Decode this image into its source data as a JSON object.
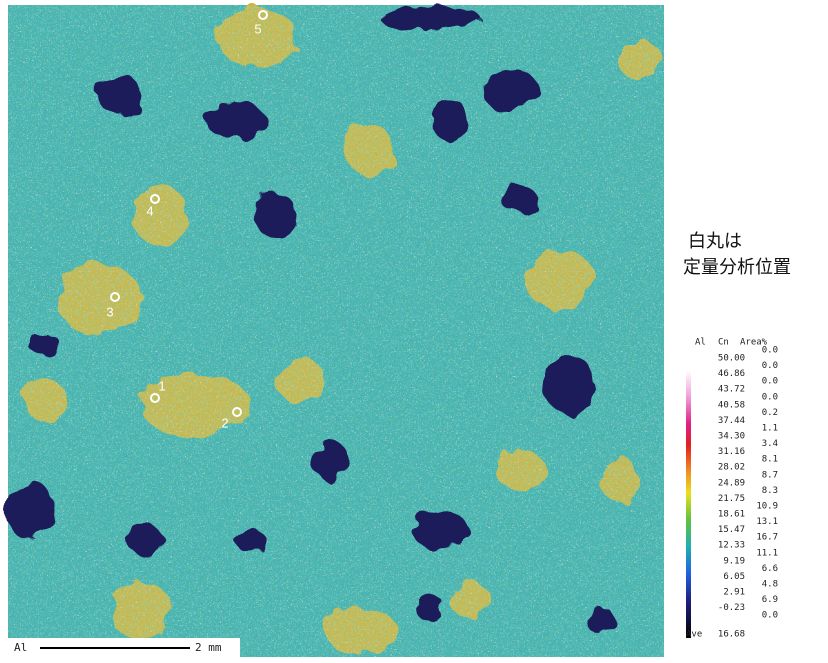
{
  "map": {
    "element": "Al",
    "scale_bar": "2 mm",
    "points": [
      {
        "label": "1"
      },
      {
        "label": "2"
      },
      {
        "label": "3"
      },
      {
        "label": "4"
      },
      {
        "label": "5"
      }
    ]
  },
  "note": {
    "line1": "白丸は",
    "line2": "定量分析位置"
  },
  "legend": {
    "header": [
      "Al",
      "Cn",
      "Area%"
    ],
    "levels": [
      "50.00",
      "46.86",
      "43.72",
      "40.58",
      "37.44",
      "34.30",
      "31.16",
      "28.02",
      "24.89",
      "21.75",
      "18.61",
      "15.47",
      "12.33",
      "9.19",
      "6.05",
      "2.91",
      "-0.23"
    ],
    "area": [
      "0.0",
      "0.0",
      "0.0",
      "0.0",
      "0.2",
      "1.1",
      "3.4",
      "8.1",
      "8.7",
      "8.3",
      "10.9",
      "13.1",
      "16.7",
      "11.1",
      "6.6",
      "4.8",
      "6.9",
      "0.0"
    ],
    "ave_label": "Ave",
    "ave_value": "16.68"
  }
}
